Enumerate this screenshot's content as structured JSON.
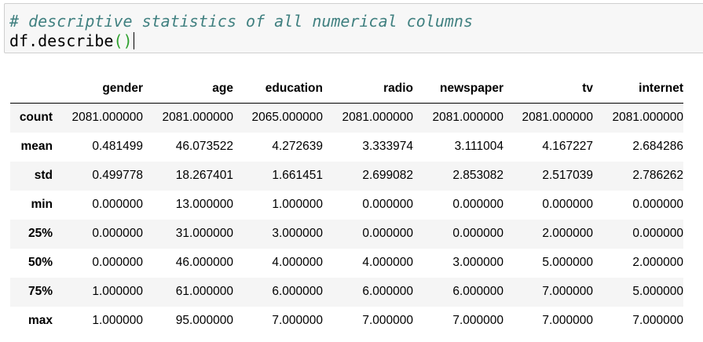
{
  "code_cell": {
    "comment": "# descriptive statistics of all numerical columns",
    "code_name": "df.describe",
    "code_paren_open": "(",
    "code_paren_close": ")"
  },
  "table": {
    "columns": [
      "gender",
      "age",
      "education",
      "radio",
      "newspaper",
      "tv",
      "internet"
    ],
    "rows": [
      {
        "label": "count",
        "values": [
          "2081.000000",
          "2081.000000",
          "2065.000000",
          "2081.000000",
          "2081.000000",
          "2081.000000",
          "2081.000000"
        ]
      },
      {
        "label": "mean",
        "values": [
          "0.481499",
          "46.073522",
          "4.272639",
          "3.333974",
          "3.111004",
          "4.167227",
          "2.684286"
        ]
      },
      {
        "label": "std",
        "values": [
          "0.499778",
          "18.267401",
          "1.661451",
          "2.699082",
          "2.853082",
          "2.517039",
          "2.786262"
        ]
      },
      {
        "label": "min",
        "values": [
          "0.000000",
          "13.000000",
          "1.000000",
          "0.000000",
          "0.000000",
          "0.000000",
          "0.000000"
        ]
      },
      {
        "label": "25%",
        "values": [
          "0.000000",
          "31.000000",
          "3.000000",
          "0.000000",
          "0.000000",
          "2.000000",
          "0.000000"
        ]
      },
      {
        "label": "50%",
        "values": [
          "0.000000",
          "46.000000",
          "4.000000",
          "4.000000",
          "3.000000",
          "5.000000",
          "2.000000"
        ]
      },
      {
        "label": "75%",
        "values": [
          "1.000000",
          "61.000000",
          "6.000000",
          "6.000000",
          "6.000000",
          "7.000000",
          "5.000000"
        ]
      },
      {
        "label": "max",
        "values": [
          "1.000000",
          "95.000000",
          "7.000000",
          "7.000000",
          "7.000000",
          "7.000000",
          "7.000000"
        ]
      }
    ]
  },
  "colors": {
    "comment": "#408080",
    "paren": "#2ea02e",
    "cell_background": "#f7f7f7",
    "row_stripe": "#f5f5f5"
  }
}
